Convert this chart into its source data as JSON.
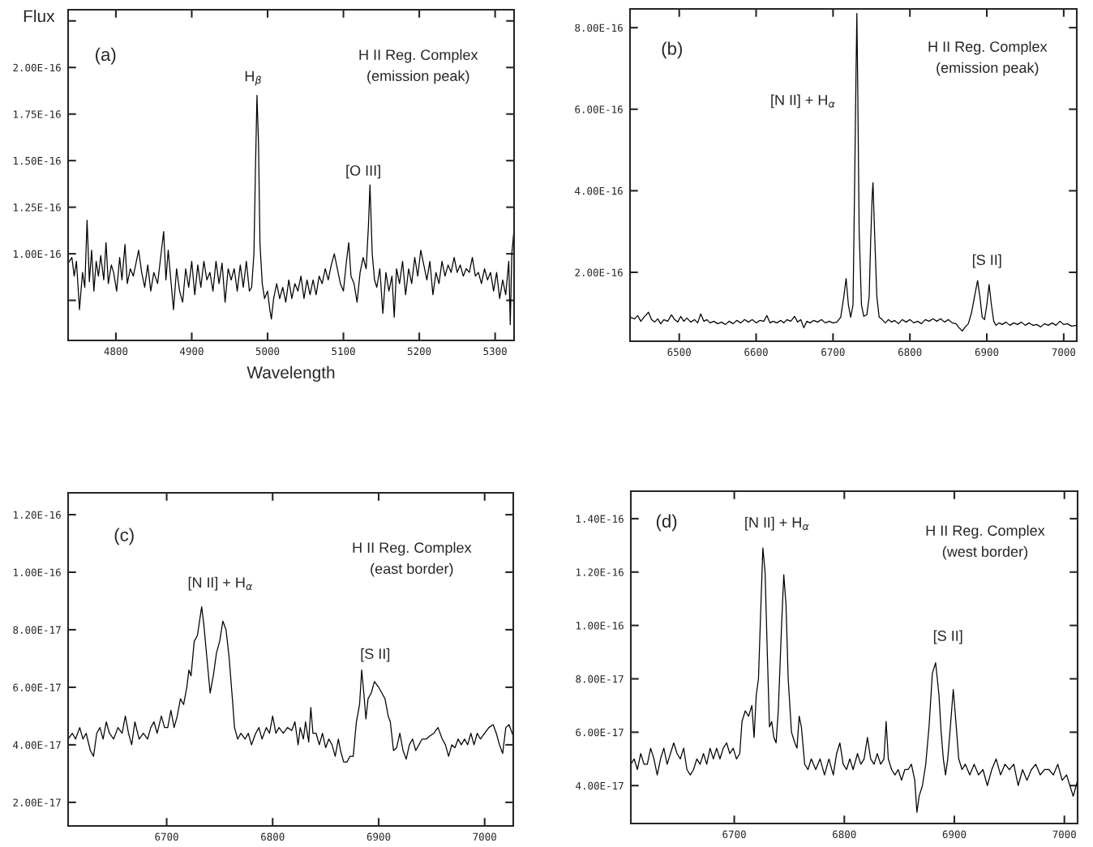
{
  "chart_data": [
    {
      "type": "line",
      "xlabel": "Wavelength",
      "ylabel": "Flux",
      "xlim": [
        4737,
        5325
      ],
      "ylim": [
        5.35e-17,
        2.31e-16
      ],
      "xticks": [
        4800,
        4900,
        5000,
        5100,
        5200,
        5300
      ],
      "yticks": [
        {
          "value": 7.5e-17,
          "label": null
        },
        {
          "value": 1e-16,
          "label": "1.00E-16"
        },
        {
          "value": 1.25e-16,
          "label": "1.25E-16"
        },
        {
          "value": 1.5e-16,
          "label": "1.50E-16"
        },
        {
          "value": 1.75e-16,
          "label": "1.75E-16"
        },
        {
          "value": 2e-16,
          "label": "2.00E-16"
        },
        {
          "value": 2.25e-16,
          "label": null
        }
      ],
      "annotations": [
        "(a)",
        "H II Reg. Complex\n(emission peak)",
        "H$_{β}$",
        "[O III]"
      ],
      "series": [
        {
          "color": "#000000",
          "x": [
            4737,
            4742,
            4745,
            4748,
            4752,
            4756,
            4759,
            4762,
            4765,
            4768,
            4771,
            4774,
            4777,
            4780,
            4784,
            4787,
            4790,
            4794,
            4797,
            4801,
            4805,
            4808,
            4812,
            4815,
            4819,
            4823,
            4827,
            4830,
            4834,
            4838,
            4842,
            4846,
            4850,
            4855,
            4859,
            4863,
            4866,
            4869,
            4872,
            4876,
            4880,
            4884,
            4888,
            4892,
            4896,
            4900,
            4904,
            4908,
            4912,
            4916,
            4920,
            4924,
            4928,
            4932,
            4936,
            4940,
            4944,
            4948,
            4952,
            4956,
            4960,
            4964,
            4968,
            4972,
            4976,
            4979,
            4982,
            4984,
            4986,
            4988,
            4990,
            4993,
            4996,
            5000,
            5003,
            5005,
            5008,
            5012,
            5016,
            5020,
            5024,
            5028,
            5032,
            5036,
            5040,
            5044,
            5048,
            5052,
            5056,
            5060,
            5064,
            5068,
            5072,
            5076,
            5080,
            5084,
            5088,
            5092,
            5096,
            5100,
            5104,
            5107,
            5110,
            5114,
            5118,
            5122,
            5126,
            5130,
            5133,
            5135,
            5138,
            5141,
            5144,
            5148,
            5152,
            5156,
            5160,
            5164,
            5167,
            5170,
            5174,
            5178,
            5182,
            5186,
            5190,
            5194,
            5198,
            5202,
            5206,
            5210,
            5214,
            5218,
            5222,
            5226,
            5230,
            5234,
            5238,
            5242,
            5246,
            5250,
            5254,
            5258,
            5262,
            5266,
            5270,
            5274,
            5278,
            5282,
            5286,
            5290,
            5294,
            5298,
            5302,
            5306,
            5310,
            5314,
            5318,
            5320,
            5322,
            5325
          ],
          "values": [
            9.5e-17,
            9.8e-17,
            8.8e-17,
            9.6e-17,
            7e-17,
            9e-17,
            8.2e-17,
            1.18e-16,
            8.5e-17,
            1.02e-16,
            8e-17,
            9.6e-17,
            8.8e-17,
            9.9e-17,
            8.6e-17,
            1.06e-16,
            8.4e-17,
            9.4e-17,
            9e-17,
            8e-17,
            9.8e-17,
            8.6e-17,
            1.05e-16,
            8.4e-17,
            9.2e-17,
            8.8e-17,
            9.6e-17,
            1.02e-16,
            9e-17,
            8.2e-17,
            9.4e-17,
            8e-17,
            9e-17,
            8.4e-17,
            9.8e-17,
            1.12e-16,
            8.6e-17,
            1.02e-16,
            8.8e-17,
            7e-17,
            9.2e-17,
            8e-17,
            7.4e-17,
            9.2e-17,
            8.2e-17,
            9.6e-17,
            7.8e-17,
            9.4e-17,
            8.2e-17,
            9.6e-17,
            8.6e-17,
            9e-17,
            8e-17,
            9.6e-17,
            8.4e-17,
            9.5e-17,
            7.4e-17,
            9.2e-17,
            8.6e-17,
            9.2e-17,
            8e-17,
            9.4e-17,
            8.2e-17,
            9.6e-17,
            8e-17,
            8.2e-17,
            1e-16,
            1.45e-16,
            1.85e-16,
            1.6e-16,
            1.05e-16,
            8.4e-17,
            7.6e-17,
            8e-17,
            7e-17,
            6.5e-17,
            7.6e-17,
            8.4e-17,
            7.6e-17,
            8.2e-17,
            7.4e-17,
            8.6e-17,
            7.6e-17,
            8.4e-17,
            8e-17,
            8.8e-17,
            7.6e-17,
            8.6e-17,
            7.8e-17,
            8.6e-17,
            7.8e-17,
            8.8e-17,
            8.4e-17,
            9.2e-17,
            8.6e-17,
            9.4e-17,
            1e-16,
            9.2e-17,
            8.4e-17,
            8e-17,
            9.6e-17,
            1.06e-16,
            8.8e-17,
            8.4e-17,
            7.4e-17,
            9e-17,
            9.8e-17,
            9.2e-17,
            1.15e-16,
            1.37e-16,
            1e-16,
            8.6e-17,
            8.2e-17,
            9.2e-17,
            6.8e-17,
            9e-17,
            8e-17,
            8.8e-17,
            6.6e-17,
            9.2e-17,
            8.4e-17,
            9.6e-17,
            7.8e-17,
            9.2e-17,
            8.4e-17,
            9.8e-17,
            8.8e-17,
            1.02e-16,
            9.4e-17,
            8.6e-17,
            9.6e-17,
            7.8e-17,
            9e-17,
            8.4e-17,
            9.6e-17,
            8.8e-17,
            9.4e-17,
            9e-17,
            9.8e-17,
            9e-17,
            9.4e-17,
            8.8e-17,
            9.2e-17,
            9e-17,
            9.8e-17,
            8.8e-17,
            9e-17,
            8.4e-17,
            9.2e-17,
            8.6e-17,
            9e-17,
            8e-17,
            9e-17,
            7.6e-17,
            8.6e-17,
            7.8e-17,
            9.6e-17,
            6.2e-17,
            1e-16,
            1.13e-16
          ]
        }
      ]
    },
    {
      "type": "line",
      "xlim": [
        6436,
        7017
      ],
      "ylim": [
        3.1e-17,
        8.46e-16
      ],
      "xticks": [
        6500,
        6600,
        6700,
        6800,
        6900,
        7000
      ],
      "yticks": [
        {
          "value": 2e-16,
          "label": "2.00E-16"
        },
        {
          "value": 4e-16,
          "label": "4.00E-16"
        },
        {
          "value": 6e-16,
          "label": "6.00E-16"
        },
        {
          "value": 8e-16,
          "label": "8.00E-16"
        }
      ],
      "annotations": [
        "(b)",
        "H II Reg. Complex\n(emission peak)",
        "[N II] + H$_{α}$",
        "[S II]"
      ],
      "series": [
        {
          "color": "#000000",
          "x": [
            6436,
            6442,
            6446,
            6450,
            6455,
            6460,
            6464,
            6468,
            6472,
            6476,
            6480,
            6485,
            6490,
            6494,
            6498,
            6502,
            6506,
            6510,
            6515,
            6520,
            6524,
            6528,
            6532,
            6536,
            6540,
            6545,
            6550,
            6555,
            6560,
            6565,
            6570,
            6575,
            6580,
            6585,
            6590,
            6595,
            6600,
            6605,
            6610,
            6614,
            6618,
            6622,
            6627,
            6632,
            6636,
            6640,
            6645,
            6650,
            6654,
            6658,
            6662,
            6666,
            6670,
            6675,
            6680,
            6685,
            6690,
            6695,
            6700,
            6705,
            6710,
            6714,
            6717,
            6720,
            6723,
            6726,
            6728,
            6730,
            6731,
            6732,
            6734,
            6737,
            6740,
            6744,
            6747,
            6749,
            6751,
            6752,
            6754,
            6757,
            6760,
            6764,
            6768,
            6772,
            6776,
            6780,
            6785,
            6790,
            6795,
            6800,
            6805,
            6810,
            6815,
            6820,
            6825,
            6830,
            6835,
            6840,
            6845,
            6850,
            6855,
            6860,
            6864,
            6868,
            6872,
            6876,
            6880,
            6884,
            6888,
            6891,
            6894,
            6897,
            6900,
            6903,
            6906,
            6909,
            6912,
            6916,
            6920,
            6925,
            6930,
            6935,
            6940,
            6945,
            6950,
            6955,
            6960,
            6965,
            6970,
            6975,
            6980,
            6985,
            6990,
            6995,
            7000,
            7005,
            7010,
            7017
          ],
          "values": [
            9e-17,
            8.6e-17,
            9.4e-17,
            8e-17,
            9.2e-17,
            1.02e-16,
            8.4e-17,
            7.8e-17,
            8.6e-17,
            7.4e-17,
            8.4e-17,
            8e-17,
            9.6e-17,
            8.4e-17,
            7.8e-17,
            9.2e-17,
            8e-17,
            8.8e-17,
            7.8e-17,
            8.4e-17,
            7.6e-17,
            9.8e-17,
            8e-17,
            8.4e-17,
            7.6e-17,
            8e-17,
            7.4e-17,
            7.8e-17,
            7.2e-17,
            8e-17,
            7.4e-17,
            8.2e-17,
            7.6e-17,
            8.4e-17,
            7.8e-17,
            8.4e-17,
            7.6e-17,
            8.2e-17,
            8e-17,
            9.4e-17,
            7.6e-17,
            8e-17,
            7.6e-17,
            8.2e-17,
            7.6e-17,
            8.4e-17,
            8e-17,
            9.2e-17,
            7.8e-17,
            8.4e-17,
            6.4e-17,
            8e-17,
            7.6e-17,
            8.2e-17,
            7.8e-17,
            8.4e-17,
            7.6e-17,
            8e-17,
            7.6e-17,
            7.8e-17,
            9e-17,
            1.4e-16,
            1.85e-16,
            1.2e-16,
            9e-17,
            1.2e-16,
            4e-16,
            7e-16,
            8.35e-16,
            6.8e-16,
            3e-16,
            1.2e-16,
            9.2e-17,
            9.6e-17,
            1.4e-16,
            2.8e-16,
            3.9e-16,
            4.2e-16,
            3e-16,
            1.4e-16,
            9e-17,
            8.4e-17,
            7.6e-17,
            8.4e-17,
            7.8e-17,
            8.2e-17,
            7.4e-17,
            8.4e-17,
            7.8e-17,
            8.4e-17,
            7.6e-17,
            8e-17,
            7.4e-17,
            8.4e-17,
            8e-17,
            8.6e-17,
            8e-17,
            8.6e-17,
            7.8e-17,
            8.4e-17,
            7.6e-17,
            7.4e-17,
            6.4e-17,
            5.6e-17,
            6.6e-17,
            7.4e-17,
            1e-16,
            1.4e-16,
            1.8e-16,
            1.4e-16,
            9e-17,
            8.4e-17,
            1.2e-16,
            1.7e-16,
            1.2e-16,
            8e-17,
            7e-17,
            7.6e-17,
            7.2e-17,
            7.8e-17,
            7e-17,
            7.6e-17,
            7.2e-17,
            7.8e-17,
            7e-17,
            7.6e-17,
            7e-17,
            7.2e-17,
            6.6e-17,
            7.4e-17,
            7e-17,
            7.6e-17,
            7e-17,
            8e-17,
            7.2e-17,
            7.4e-17,
            6.8e-17,
            7e-17
          ]
        }
      ]
    },
    {
      "type": "line",
      "xlim": [
        6607,
        7027
      ],
      "ylim": [
        1.18e-17,
        1.276e-16
      ],
      "xticks": [
        6700,
        6800,
        6900,
        7000
      ],
      "yticks": [
        {
          "value": 2e-17,
          "label": "2.00E-17"
        },
        {
          "value": 4e-17,
          "label": "4.00E-17"
        },
        {
          "value": 6e-17,
          "label": "6.00E-17"
        },
        {
          "value": 8e-17,
          "label": "8.00E-17"
        },
        {
          "value": 1e-16,
          "label": "1.00E-16"
        },
        {
          "value": 1.2e-16,
          "label": "1.20E-16"
        }
      ],
      "annotations": [
        "(c)",
        "H II Reg. Complex\n(east border)",
        "[N II] + H$_{α}$",
        "[S II]"
      ],
      "series": [
        {
          "color": "#000000",
          "x": [
            6607,
            6611,
            6614,
            6618,
            6621,
            6624,
            6628,
            6631,
            6634,
            6637,
            6640,
            6643,
            6646,
            6650,
            6654,
            6658,
            6661,
            6664,
            6667,
            6670,
            6674,
            6678,
            6682,
            6685,
            6688,
            6691,
            6695,
            6698,
            6701,
            6704,
            6707,
            6710,
            6713,
            6716,
            6719,
            6721,
            6723,
            6726,
            6729,
            6733,
            6735,
            6738,
            6741,
            6744,
            6747,
            6750,
            6753,
            6756,
            6759,
            6762,
            6764,
            6767,
            6770,
            6774,
            6777,
            6780,
            6784,
            6787,
            6790,
            6794,
            6797,
            6800,
            6803,
            6806,
            6810,
            6814,
            6818,
            6821,
            6824,
            6826,
            6829,
            6831,
            6834,
            6836,
            6838,
            6841,
            6844,
            6847,
            6850,
            6853,
            6856,
            6859,
            6862,
            6864,
            6867,
            6870,
            6873,
            6876,
            6879,
            6882,
            6884,
            6886,
            6888,
            6890,
            6893,
            6896,
            6900,
            6903,
            6906,
            6909,
            6911,
            6914,
            6917,
            6920,
            6923,
            6926,
            6929,
            6932,
            6935,
            6938,
            6941,
            6945,
            6948,
            6952,
            6956,
            6960,
            6963,
            6966,
            6969,
            6972,
            6975,
            6978,
            6981,
            6984,
            6987,
            6990,
            6993,
            6996,
            7000,
            7004,
            7008,
            7011,
            7014,
            7017,
            7020,
            7023,
            7027
          ],
          "values": [
            4.2e-17,
            4.4e-17,
            4.2e-17,
            4.6e-17,
            4.2e-17,
            4.4e-17,
            3.8e-17,
            3.6e-17,
            4.4e-17,
            4.6e-17,
            4.2e-17,
            4.8e-17,
            4.4e-17,
            4.2e-17,
            4.6e-17,
            4.4e-17,
            5e-17,
            4.4e-17,
            4e-17,
            4.8e-17,
            4.2e-17,
            4.4e-17,
            4.2e-17,
            4.6e-17,
            4.8e-17,
            4.4e-17,
            5e-17,
            4.6e-17,
            4.6e-17,
            5.2e-17,
            4.6e-17,
            5e-17,
            5.6e-17,
            5.4e-17,
            6e-17,
            6.6e-17,
            6.4e-17,
            7.6e-17,
            7.8e-17,
            8.8e-17,
            8.2e-17,
            7e-17,
            5.8e-17,
            6.4e-17,
            7.2e-17,
            7.6e-17,
            8.3e-17,
            8e-17,
            7e-17,
            5.6e-17,
            4.6e-17,
            4.2e-17,
            4.4e-17,
            4.2e-17,
            4.4e-17,
            4e-17,
            4.4e-17,
            4.6e-17,
            4.2e-17,
            4.6e-17,
            4.4e-17,
            5e-17,
            4.4e-17,
            4.6e-17,
            4.4e-17,
            4.6e-17,
            4.5e-17,
            4.8e-17,
            4e-17,
            4.6e-17,
            4.2e-17,
            4.8e-17,
            4.1e-17,
            5.3e-17,
            4.4e-17,
            4.4e-17,
            4e-17,
            4.4e-17,
            3.9e-17,
            4.2e-17,
            4e-17,
            3.6e-17,
            4.2e-17,
            3.8e-17,
            3.4e-17,
            3.4e-17,
            3.6e-17,
            3.6e-17,
            4.8e-17,
            5.4e-17,
            6.6e-17,
            5.8e-17,
            4.9e-17,
            5.6e-17,
            5.8e-17,
            6.2e-17,
            6e-17,
            5.8e-17,
            5.6e-17,
            5e-17,
            4.8e-17,
            3.8e-17,
            3.9e-17,
            4.4e-17,
            3.8e-17,
            3.5e-17,
            4e-17,
            4.2e-17,
            3.8e-17,
            4e-17,
            4.2e-17,
            4.2e-17,
            4.3e-17,
            4.4e-17,
            4.6e-17,
            4.2e-17,
            4e-17,
            3.6e-17,
            4e-17,
            3.9e-17,
            4.2e-17,
            4e-17,
            4.2e-17,
            4e-17,
            4.4e-17,
            4e-17,
            4.4e-17,
            4.2e-17,
            4.4e-17,
            4.6e-17,
            4.7e-17,
            4.4e-17,
            4e-17,
            3.7e-17,
            4.6e-17,
            4.7e-17,
            4.3e-17
          ]
        }
      ]
    },
    {
      "type": "line",
      "xlim": [
        6606,
        7012
      ],
      "ylim": [
        2.58e-17,
        1.503e-16
      ],
      "xticks": [
        6700,
        6800,
        6900,
        7000
      ],
      "yticks": [
        {
          "value": 4e-17,
          "label": "4.00E-17"
        },
        {
          "value": 6e-17,
          "label": "6.00E-17"
        },
        {
          "value": 8e-17,
          "label": "8.00E-17"
        },
        {
          "value": 1e-16,
          "label": "1.00E-16"
        },
        {
          "value": 1.2e-16,
          "label": "1.20E-16"
        },
        {
          "value": 1.4e-16,
          "label": "1.40E-16"
        }
      ],
      "annotations": [
        "(d)",
        "H II Reg. Complex\n(west border)",
        "[N II] + H$_{α}$",
        "[S II]"
      ],
      "series": [
        {
          "color": "#000000",
          "x": [
            6606,
            6609,
            6612,
            6615,
            6618,
            6621,
            6624,
            6627,
            6630,
            6633,
            6636,
            6639,
            6642,
            6645,
            6648,
            6651,
            6654,
            6657,
            6660,
            6663,
            6666,
            6669,
            6672,
            6675,
            6678,
            6681,
            6684,
            6687,
            6690,
            6693,
            6696,
            6699,
            6702,
            6705,
            6707,
            6710,
            6713,
            6716,
            6718,
            6720,
            6722,
            6724,
            6726,
            6728,
            6730,
            6732,
            6734,
            6736,
            6738,
            6740,
            6743,
            6745,
            6747,
            6749,
            6752,
            6755,
            6757,
            6759,
            6761,
            6764,
            6767,
            6770,
            6774,
            6778,
            6782,
            6786,
            6790,
            6793,
            6796,
            6799,
            6802,
            6805,
            6808,
            6812,
            6815,
            6818,
            6821,
            6824,
            6827,
            6830,
            6833,
            6836,
            6838,
            6840,
            6843,
            6846,
            6849,
            6852,
            6855,
            6858,
            6861,
            6864,
            6866,
            6868,
            6871,
            6874,
            6877,
            6880,
            6883,
            6886,
            6888,
            6890,
            6892,
            6894,
            6896,
            6899,
            6901,
            6904,
            6907,
            6910,
            6914,
            6918,
            6922,
            6926,
            6930,
            6934,
            6938,
            6942,
            6946,
            6950,
            6954,
            6958,
            6962,
            6966,
            6970,
            6974,
            6978,
            6982,
            6986,
            6990,
            6994,
            6998,
            7002,
            7005,
            7008,
            7012
          ],
          "values": [
            4.8e-17,
            5e-17,
            4.6e-17,
            5.2e-17,
            4.8e-17,
            4.8e-17,
            5.4e-17,
            5e-17,
            4.4e-17,
            5e-17,
            5.4e-17,
            4.8e-17,
            5.2e-17,
            5.6e-17,
            5.2e-17,
            5e-17,
            5.4e-17,
            4.6e-17,
            4.4e-17,
            4.6e-17,
            5e-17,
            4.8e-17,
            5.2e-17,
            4.8e-17,
            5.4e-17,
            5e-17,
            5.4e-17,
            5e-17,
            5.4e-17,
            5.6e-17,
            5.2e-17,
            5.4e-17,
            5e-17,
            5.2e-17,
            6.4e-17,
            6.8e-17,
            6.6e-17,
            7e-17,
            5.8e-17,
            7.4e-17,
            8e-17,
            1.05e-16,
            1.29e-16,
            1.2e-16,
            9e-17,
            6.2e-17,
            6.4e-17,
            5.8e-17,
            5.6e-17,
            6.8e-17,
            1e-16,
            1.19e-16,
            1.08e-16,
            8e-17,
            6e-17,
            5.6e-17,
            5.4e-17,
            6.6e-17,
            6.2e-17,
            4.8e-17,
            4.6e-17,
            5e-17,
            4.6e-17,
            5e-17,
            4.4e-17,
            5e-17,
            4.4e-17,
            5.2e-17,
            5.6e-17,
            4.8e-17,
            4.6e-17,
            5e-17,
            4.6e-17,
            5.2e-17,
            4.8e-17,
            5e-17,
            5.8e-17,
            5e-17,
            4.8e-17,
            5.2e-17,
            4.8e-17,
            5e-17,
            6.4e-17,
            5e-17,
            4.6e-17,
            4.4e-17,
            4.6e-17,
            4.2e-17,
            4.6e-17,
            4.6e-17,
            4.8e-17,
            4.2e-17,
            3e-17,
            3.6e-17,
            4e-17,
            4.8e-17,
            6.2e-17,
            8.2e-17,
            8.6e-17,
            7.4e-17,
            6e-17,
            5e-17,
            4.4e-17,
            5e-17,
            6e-17,
            7.6e-17,
            6.6e-17,
            5e-17,
            4.6e-17,
            4.8e-17,
            4.4e-17,
            4.8e-17,
            4.4e-17,
            4.6e-17,
            4e-17,
            4.6e-17,
            5e-17,
            4.4e-17,
            4.8e-17,
            4.6e-17,
            4.8e-17,
            4e-17,
            4.6e-17,
            4.2e-17,
            4.6e-17,
            4.8e-17,
            4.4e-17,
            4.6e-17,
            4.6e-17,
            4.4e-17,
            4.8e-17,
            4.2e-17,
            4.4e-17,
            4e-17,
            3.6e-17,
            4.2e-17
          ]
        }
      ]
    }
  ]
}
